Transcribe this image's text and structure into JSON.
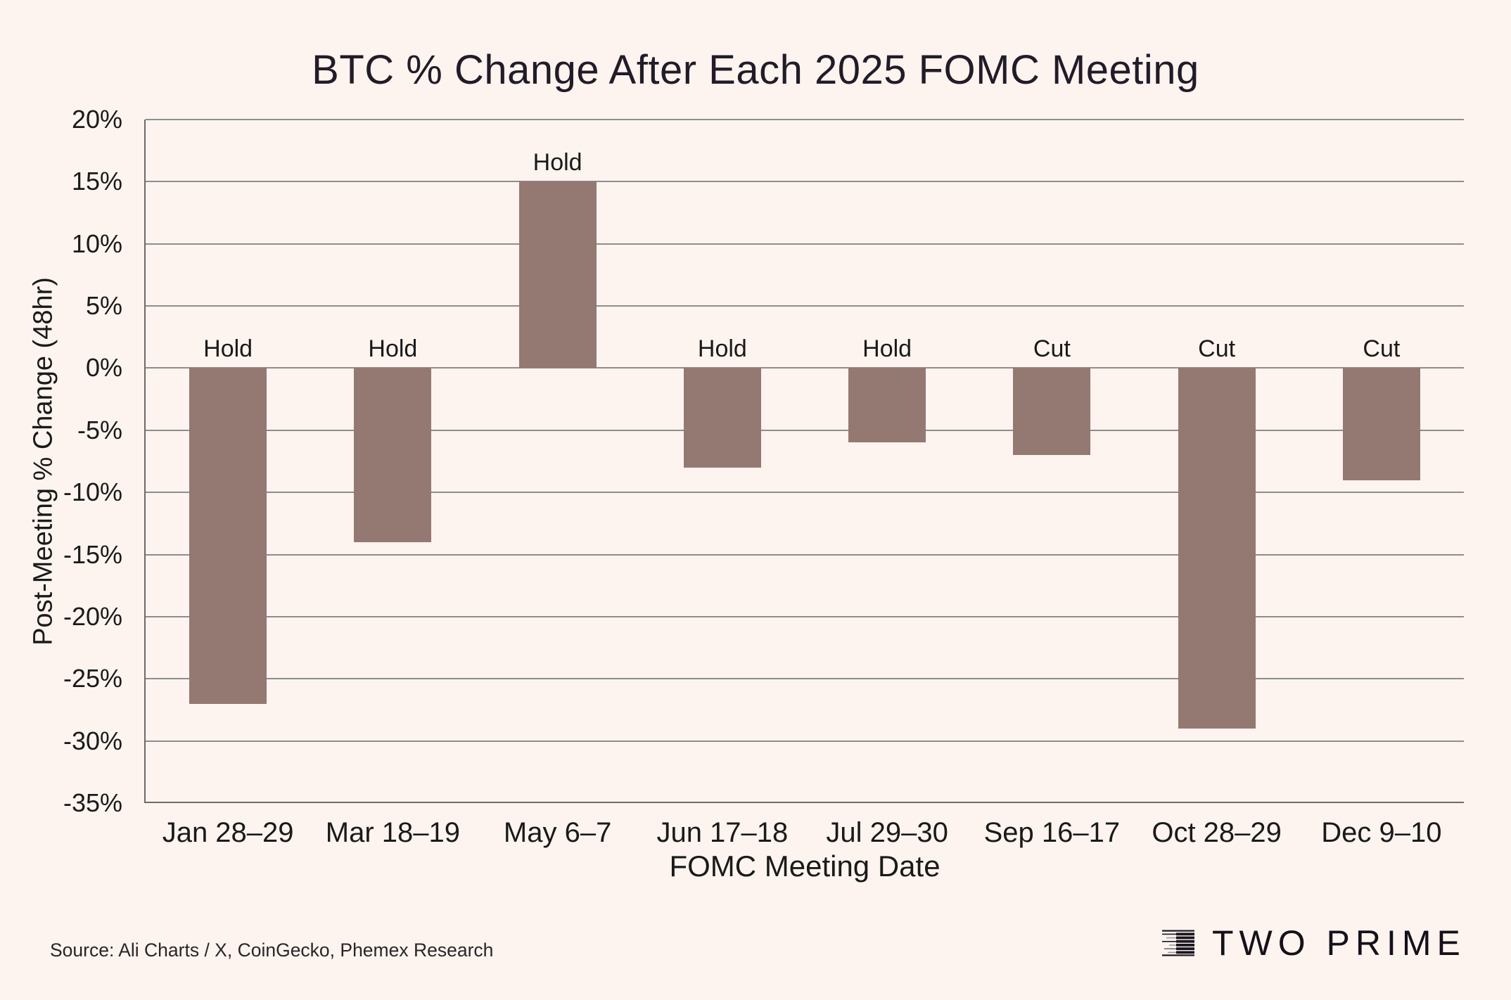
{
  "title": "BTC % Change After Each 2025 FOMC Meeting",
  "source_note": "Source: Ali Charts / X, CoinGecko, Phemex Research",
  "brand": {
    "name": "TWO PRIME"
  },
  "colors": {
    "background": "#FDF4EF",
    "bar": "#947872",
    "gridline": "#8D8D8D",
    "spine": "#6E6A69",
    "text": "#1A1A1A",
    "title": "#221B28"
  },
  "chart_data": {
    "type": "bar",
    "title": "BTC % Change After Each 2025 FOMC Meeting",
    "xlabel": "FOMC Meeting Date",
    "ylabel": "Post-Meeting % Change (48hr)",
    "categories": [
      "Jan 28–29",
      "Mar 18–19",
      "May 6–7",
      "Jun 17–18",
      "Jul 29–30",
      "Sep 16–17",
      "Oct 28–29",
      "Dec 9–10"
    ],
    "values": [
      -27,
      -14,
      15,
      -8,
      -6,
      -7,
      -29,
      -9
    ],
    "bar_annotations": [
      "Hold",
      "Hold",
      "Hold",
      "Hold",
      "Hold",
      "Cut",
      "Cut",
      "Cut"
    ],
    "ylim": [
      -35,
      20
    ],
    "y_ticks": [
      {
        "value": 20,
        "label": "20%"
      },
      {
        "value": 15,
        "label": "15%"
      },
      {
        "value": 10,
        "label": "10%"
      },
      {
        "value": 5,
        "label": "5%"
      },
      {
        "value": 0,
        "label": "0%"
      },
      {
        "value": -5,
        "label": "-5%"
      },
      {
        "value": -10,
        "label": "-10%"
      },
      {
        "value": -15,
        "label": "-15%"
      },
      {
        "value": -20,
        "label": "-20%"
      },
      {
        "value": -25,
        "label": "-25%"
      },
      {
        "value": -30,
        "label": "-30%"
      },
      {
        "value": -35,
        "label": "-35%"
      }
    ],
    "grid": true,
    "legend": "none"
  }
}
